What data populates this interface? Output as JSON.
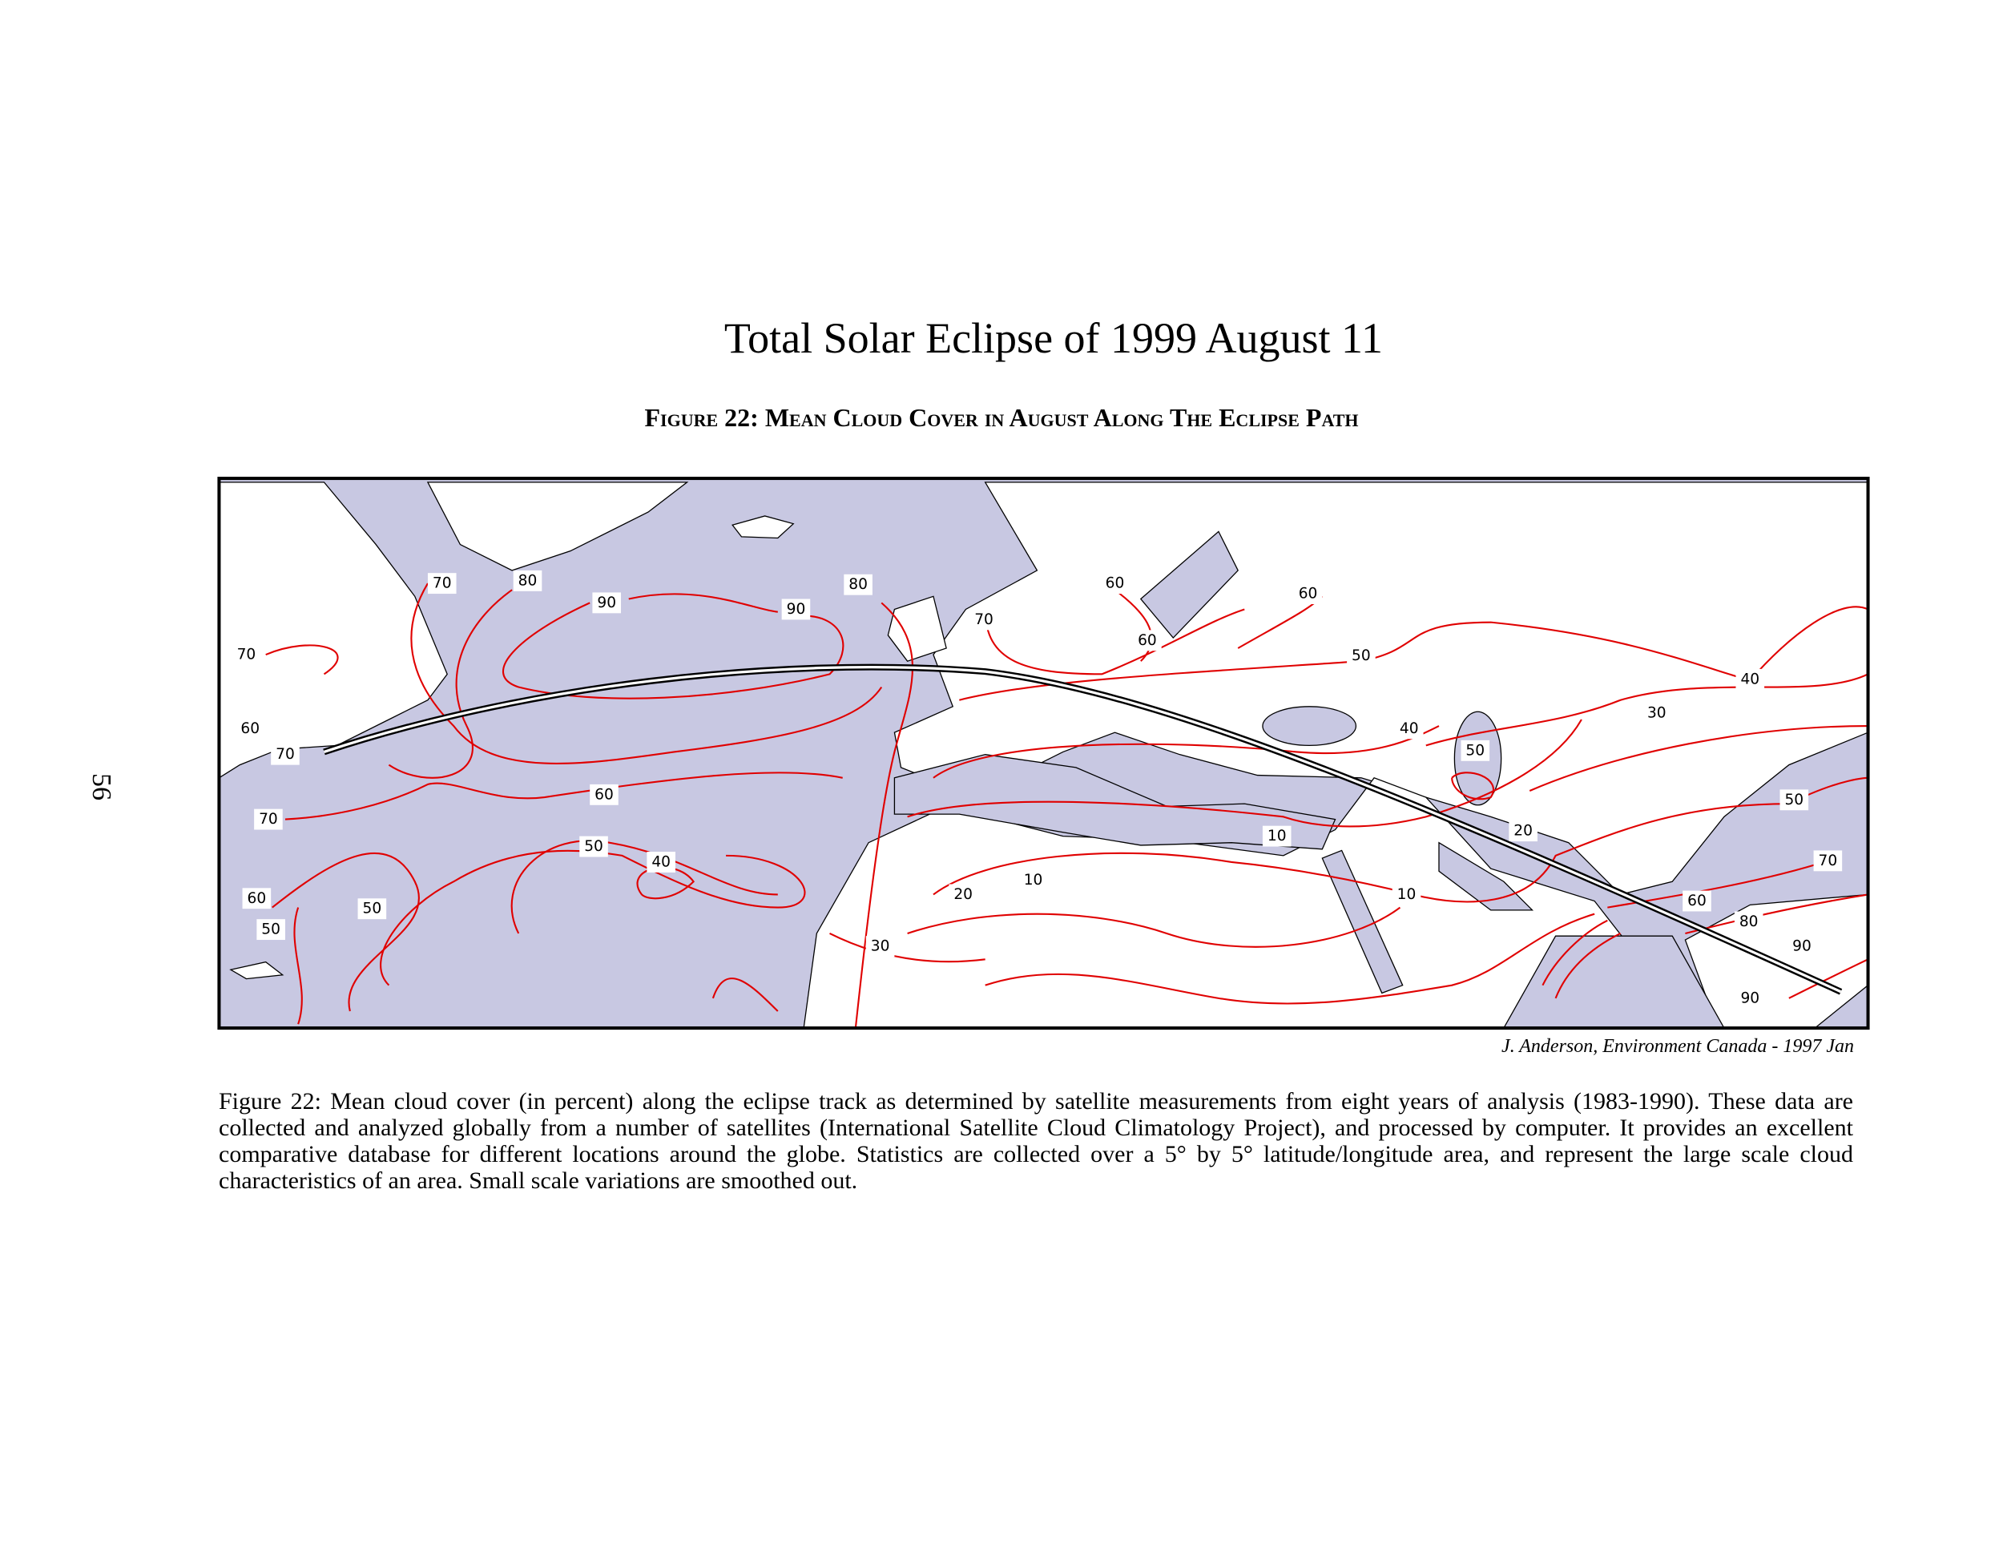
{
  "page_number": "56",
  "header": {
    "title": "Total Solar Eclipse of 1999 August 11",
    "figure_heading": "Figure 22: Mean Cloud Cover in August Along The Eclipse Path"
  },
  "map": {
    "contour_labels": [
      "70",
      "80",
      "90",
      "90",
      "80",
      "70",
      "60",
      "60",
      "60",
      "50",
      "40",
      "30",
      "40",
      "50",
      "70",
      "60",
      "70",
      "60",
      "70",
      "50",
      "40",
      "10",
      "20",
      "50",
      "70",
      "20",
      "10",
      "10",
      "60",
      "80",
      "90",
      "90",
      "60",
      "50",
      "50",
      "30"
    ],
    "credit": "J. Anderson, Environment Canada - 1997 Jan"
  },
  "caption": "Figure 22: Mean cloud cover (in percent) along the eclipse track as determined by satellite measurements from eight years of analysis (1983-1990). These data are collected and analyzed globally from a number of satellites (International Satellite Cloud Climatology Project), and processed by computer. It provides an excellent comparative database for different locations around the globe. Statistics are collected over a 5° by 5° latitude/longitude area, and represent the large scale cloud characteristics of an area. Small scale variations are smoothed out."
}
